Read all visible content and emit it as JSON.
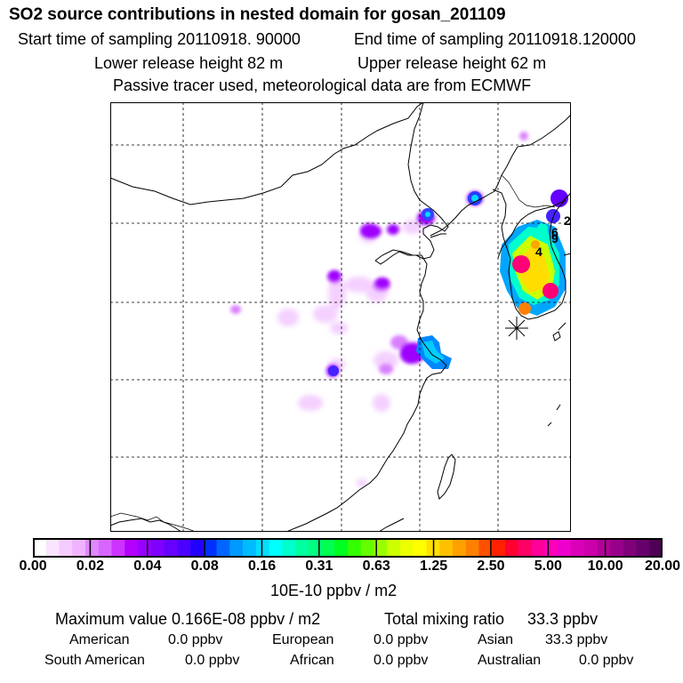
{
  "header": {
    "title": "SO2 source contributions in nested domain for gosan_201109",
    "start": "Start time of sampling 20110918. 90000",
    "end": "End time of sampling 20110918.120000",
    "lower": "Lower release height   82 m",
    "upper": "Upper release height   62 m",
    "info": "Passive tracer used, meteorological data are from ECMWF"
  },
  "map": {
    "labels": [
      "2",
      "6",
      "9",
      "4"
    ]
  },
  "colorbar": {
    "ticks": [
      "0.00",
      "0.02",
      "0.04",
      "0.08",
      "0.16",
      "0.31",
      "0.63",
      "1.25",
      "2.50",
      "5.00",
      "10.00",
      "20.00"
    ],
    "colors": [
      "#ffffff",
      "#fbe4ff",
      "#f5ccff",
      "#f0b3ff",
      "#e088ff",
      "#d766ff",
      "#cc33ff",
      "#b300ff",
      "#9900ff",
      "#7f00ff",
      "#6600ff",
      "#4c00ff",
      "#2200ff",
      "#0030ff",
      "#0066ff",
      "#0099ff",
      "#00bbff",
      "#00ddff",
      "#00ffff",
      "#00ffcc",
      "#00ffa0",
      "#00ff80",
      "#00ff50",
      "#00ff20",
      "#33ff00",
      "#66ff00",
      "#99ff00",
      "#ccff00",
      "#eeff00",
      "#ffff00",
      "#ffe000",
      "#ffc000",
      "#ffa000",
      "#ff8000",
      "#ff5000",
      "#ff2000",
      "#ff0030",
      "#ff0066",
      "#ff0099",
      "#ff00bb",
      "#ee00cc",
      "#d900b8",
      "#cc00aa",
      "#b3009a",
      "#99008a",
      "#80007a",
      "#66006a",
      "#4d0055"
    ],
    "units": "10E-10 ppbv / m2"
  },
  "stats": {
    "max_value": "Maximum value  0.166E-08 ppbv / m2",
    "total_label": "Total mixing ratio",
    "total_value": "33.3 ppbv"
  },
  "regions": [
    {
      "name": "American",
      "value": "0.0 ppbv"
    },
    {
      "name": "European",
      "value": "0.0 ppbv"
    },
    {
      "name": "Asian",
      "value": "33.3 ppbv"
    },
    {
      "name": "South American",
      "value": "0.0 ppbv"
    },
    {
      "name": "African",
      "value": "0.0 ppbv"
    },
    {
      "name": "Australian",
      "value": "0.0 ppbv"
    }
  ]
}
